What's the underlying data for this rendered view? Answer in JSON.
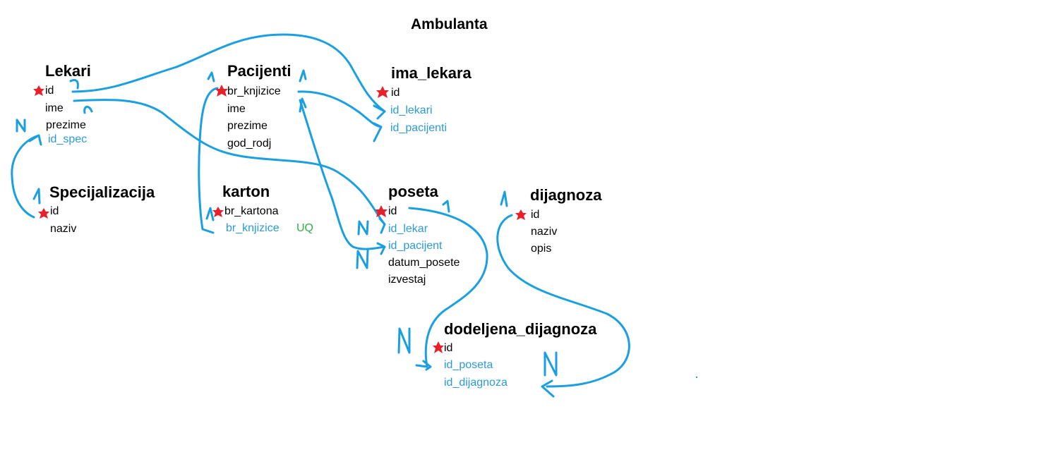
{
  "diagram": {
    "title": "Ambulanta",
    "colors": {
      "connector": "#1a9fe0",
      "pk_marker": "#e8202a",
      "fk_text": "#2b9bd6",
      "uq_text": "#2fae4a",
      "text": "#000000"
    },
    "entities": {
      "lekari": {
        "name": "Lekari",
        "fields": [
          "id",
          "ime",
          "prezime",
          "id_spec"
        ]
      },
      "pacijenti": {
        "name": "Pacijenti",
        "fields": [
          "br_knjizice",
          "ime",
          "prezime",
          "god_rodj"
        ]
      },
      "ima_lekara": {
        "name": "ima_lekara",
        "fields": [
          "id",
          "id_lekari",
          "id_pacijenti"
        ]
      },
      "specijalizacija": {
        "name": "Specijalizacija",
        "fields": [
          "id",
          "naziv"
        ]
      },
      "karton": {
        "name": "karton",
        "fields": [
          "br_kartona",
          "br_knjizice"
        ],
        "unique_label": "UQ"
      },
      "poseta": {
        "name": "poseta",
        "fields": [
          "id",
          "id_lekar",
          "id_pacijent",
          "datum_posete",
          "izvestaj"
        ]
      },
      "dijagnoza": {
        "name": "dijagnoza",
        "fields": [
          "id",
          "naziv",
          "opis"
        ]
      },
      "dodeljena_dijagnoza": {
        "name": "dodeljena_dijagnoza",
        "fields": [
          "id",
          "id_poseta",
          "id_dijagnoza"
        ]
      }
    },
    "cardinality": {
      "one": "1",
      "many": "N"
    }
  }
}
